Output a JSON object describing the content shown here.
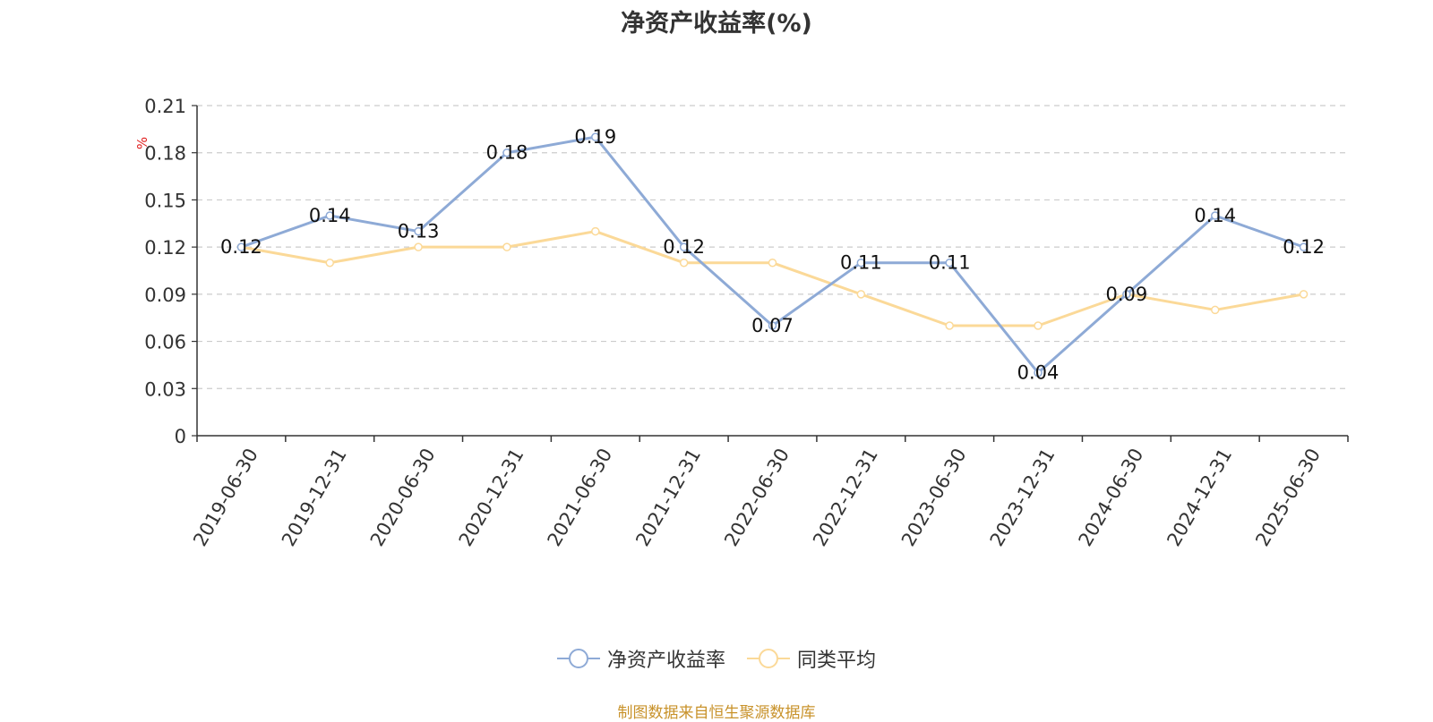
{
  "chart_data": {
    "type": "line",
    "title": "净资产收益率(%)",
    "ylabel": "%",
    "categories": [
      "2019-06-30",
      "2019-12-31",
      "2020-06-30",
      "2020-12-31",
      "2021-06-30",
      "2021-12-31",
      "2022-06-30",
      "2022-12-31",
      "2023-06-30",
      "2023-12-31",
      "2024-06-30",
      "2024-12-31",
      "2025-06-30"
    ],
    "series": [
      {
        "name": "净资产收益率",
        "color": "#8eaad6",
        "values": [
          0.12,
          0.14,
          0.13,
          0.18,
          0.19,
          0.12,
          0.07,
          0.11,
          0.11,
          0.04,
          0.09,
          0.14,
          0.12
        ],
        "labels": [
          "0.12",
          "0.14",
          "0.13",
          "0.18",
          "0.19",
          "0.12",
          "0.07",
          "0.11",
          "0.11",
          "0.04",
          "0.09",
          "0.14",
          "0.12"
        ]
      },
      {
        "name": "同类平均",
        "color": "#fbd998",
        "values": [
          0.12,
          0.11,
          0.12,
          0.12,
          0.13,
          0.11,
          0.11,
          0.09,
          0.07,
          0.07,
          0.09,
          0.08,
          0.09
        ]
      }
    ],
    "ylim": [
      0,
      0.21
    ],
    "yticks": [
      "0",
      "0.03",
      "0.06",
      "0.09",
      "0.12",
      "0.15",
      "0.18",
      "0.21"
    ],
    "grid": true,
    "legend": "bottom-center"
  },
  "source_note": "制图数据来自恒生聚源数据库"
}
